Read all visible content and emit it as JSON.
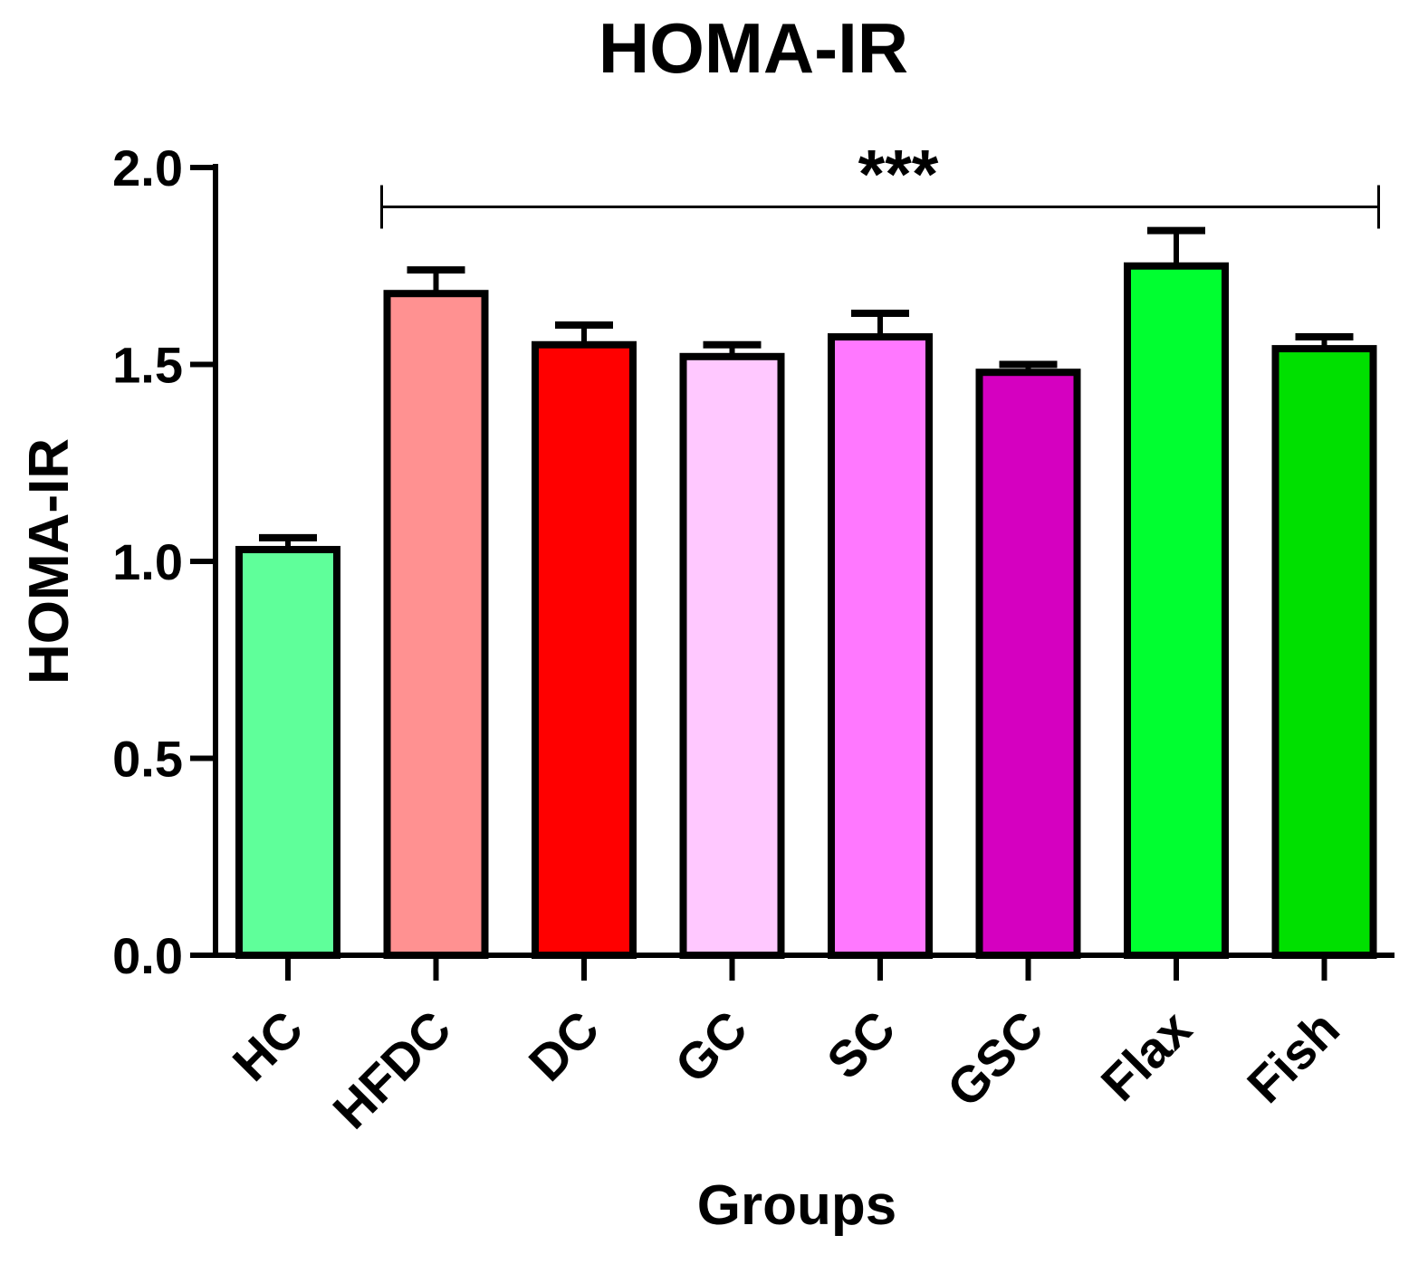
{
  "chart_data": {
    "type": "bar",
    "title": "HOMA-IR",
    "xlabel": "Groups",
    "ylabel": "HOMA-IR",
    "ylim": [
      0,
      2.0
    ],
    "yticks": [
      0.0,
      0.5,
      1.0,
      1.5,
      2.0
    ],
    "ytick_labels": [
      "0.0",
      "0.5",
      "1.0",
      "1.5",
      "2.0"
    ],
    "categories": [
      "HC",
      "HFDC",
      "DC",
      "GC",
      "SC",
      "GSC",
      "Flax",
      "Fish"
    ],
    "values": [
      1.03,
      1.68,
      1.55,
      1.52,
      1.57,
      1.48,
      1.75,
      1.54
    ],
    "errors": [
      0.03,
      0.06,
      0.05,
      0.03,
      0.06,
      0.02,
      0.09,
      0.03
    ],
    "colors": [
      "#5FFF9A",
      "#FF9191",
      "#FF0000",
      "#FFC8FF",
      "#FF78FF",
      "#D500C0",
      "#00FF30",
      "#00E000"
    ],
    "grid": false,
    "annotation": {
      "text": "***",
      "from_category": "HFDC",
      "to_category": "Fish",
      "y": 1.9
    }
  }
}
